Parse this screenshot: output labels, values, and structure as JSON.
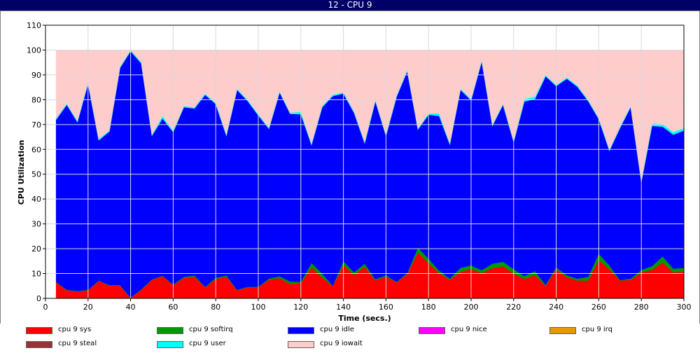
{
  "window": {
    "title": "12 - CPU 9"
  },
  "chart_data": {
    "type": "area",
    "stacked": true,
    "xlabel": "Time (secs.)",
    "ylabel": "CPU Utilization",
    "xlim": [
      0,
      300
    ],
    "ylim": [
      0,
      110
    ],
    "xticks": [
      0,
      20,
      40,
      60,
      80,
      100,
      120,
      140,
      160,
      180,
      200,
      220,
      240,
      260,
      280,
      300
    ],
    "yticks": [
      0,
      10,
      20,
      30,
      40,
      50,
      60,
      70,
      80,
      90,
      100,
      110
    ],
    "grid": true,
    "legend": "bottom",
    "x": [
      5,
      10,
      15,
      20,
      25,
      30,
      35,
      40,
      45,
      50,
      55,
      60,
      65,
      70,
      75,
      80,
      85,
      90,
      95,
      100,
      105,
      110,
      115,
      120,
      125,
      130,
      135,
      140,
      145,
      150,
      155,
      160,
      165,
      170,
      175,
      180,
      185,
      190,
      195,
      200,
      205,
      210,
      215,
      220,
      225,
      230,
      235,
      240,
      245,
      250,
      255,
      260,
      265,
      270,
      275,
      280,
      285,
      290,
      295,
      300
    ],
    "series": [
      {
        "name": "cpu 9 sys",
        "color": "#ff0000",
        "values": [
          6.5,
          3.3,
          2.8,
          3.3,
          7,
          5.2,
          5.2,
          0.2,
          3.5,
          7.5,
          9,
          5.4,
          8.2,
          8.8,
          4.5,
          7.8,
          8.8,
          3.3,
          4.5,
          4.5,
          7.5,
          8.2,
          5.8,
          6.2,
          12.5,
          8.5,
          5,
          13.5,
          9.5,
          12.8,
          7.3,
          8.8,
          6.5,
          9.8,
          18.5,
          14.2,
          10.2,
          7.5,
          10.8,
          11.8,
          10.2,
          12.2,
          13,
          10,
          7.8,
          9.5,
          5,
          11.8,
          8.5,
          7.2,
          7.2,
          15.5,
          11.8,
          7.2,
          7.5,
          10.5,
          11.5,
          14.5,
          10.5,
          10.8
        ]
      },
      {
        "name": "cpu 9 softirq",
        "color": "#009900",
        "values": [
          0.2,
          0.2,
          0.2,
          0.2,
          0.2,
          0.2,
          0.2,
          0.2,
          0.2,
          0.2,
          0.2,
          0.2,
          0.5,
          0.5,
          0.2,
          0.5,
          0.5,
          0.2,
          0.2,
          0.2,
          0.5,
          0.8,
          1,
          0.5,
          1.8,
          1.5,
          0.2,
          1.5,
          1,
          1.2,
          0.5,
          0.5,
          0.2,
          0.5,
          2,
          1.8,
          1,
          0.5,
          1.5,
          1.5,
          1.2,
          1.8,
          1.8,
          1.8,
          1.2,
          1.5,
          0.5,
          0.8,
          0.8,
          0.8,
          1.5,
          2.5,
          1.5,
          0.2,
          0.5,
          1,
          1.5,
          2.5,
          1.5,
          1.5
        ]
      },
      {
        "name": "cpu 9 idle",
        "color": "#0000ff",
        "values": [
          65.3,
          74.5,
          68,
          83,
          56.5,
          61.8,
          87.4,
          99.2,
          91,
          57.8,
          63.3,
          61.4,
          68.3,
          67.2,
          77.3,
          70,
          56.2,
          80.5,
          74.8,
          69,
          60.3,
          74,
          67.5,
          67.5,
          47.5,
          67,
          76.3,
          67.5,
          64.3,
          48.5,
          71.7,
          56.2,
          74.6,
          81.2,
          47.5,
          58,
          62.3,
          54,
          71.7,
          66.5,
          84.1,
          55.5,
          63.2,
          51.2,
          70.3,
          69.3,
          84,
          72.9,
          79.2,
          77.2,
          70.8,
          54.2,
          46.2,
          61.3,
          69.1,
          35.4,
          56.5,
          52.2,
          54,
          55.3
        ]
      },
      {
        "name": "cpu 9 nice",
        "color": "#ff00ff",
        "values": [
          0,
          0,
          0,
          0,
          0,
          0,
          0,
          0,
          0,
          0,
          0,
          0,
          0,
          0,
          0,
          0,
          0,
          0,
          0,
          0,
          0,
          0,
          0,
          0,
          0,
          0,
          0,
          0,
          0,
          0,
          0,
          0,
          0,
          0,
          0,
          0,
          0,
          0,
          0,
          0,
          0,
          0,
          0,
          0,
          0,
          0,
          0,
          0,
          0,
          0,
          0,
          0,
          0,
          0,
          0,
          0,
          0,
          0,
          0,
          0
        ]
      },
      {
        "name": "cpu 9 irq",
        "color": "#e69900",
        "values": [
          0,
          0,
          0,
          0,
          0,
          0,
          0,
          0,
          0,
          0,
          0,
          0,
          0,
          0,
          0,
          0,
          0,
          0,
          0,
          0,
          0,
          0,
          0,
          0,
          0,
          0,
          0,
          0,
          0,
          0,
          0,
          0,
          0,
          0,
          0,
          0,
          0,
          0,
          0,
          0,
          0,
          0,
          0,
          0,
          0,
          0,
          0,
          0,
          0,
          0,
          0,
          0,
          0,
          0,
          0,
          0,
          0,
          0,
          0,
          0
        ]
      },
      {
        "name": "cpu 9 steal",
        "color": "#993333",
        "values": [
          0,
          0,
          0,
          0,
          0,
          0,
          0,
          0,
          0,
          0,
          0,
          0,
          0,
          0,
          0,
          0,
          0,
          0,
          0,
          0,
          0,
          0,
          0,
          0,
          0,
          0,
          0,
          0,
          0,
          0,
          0,
          0,
          0,
          0,
          0,
          0,
          0,
          0,
          0,
          0,
          0,
          0,
          0,
          0,
          0,
          0,
          0,
          0,
          0,
          0,
          0,
          0,
          0,
          0,
          0,
          0,
          0,
          0,
          0,
          0
        ]
      },
      {
        "name": "cpu 9 user",
        "color": "#00ffff",
        "values": [
          0.5,
          0.5,
          0.5,
          0.5,
          0.5,
          0.5,
          0.5,
          0.4,
          0.5,
          0.5,
          1,
          0.5,
          0.5,
          0.5,
          0.5,
          0.5,
          0.5,
          0.5,
          0.5,
          0.5,
          0.5,
          0.5,
          0.5,
          1,
          0.5,
          0.5,
          0.5,
          0.5,
          0.5,
          0.5,
          0.5,
          0.5,
          0.5,
          0.5,
          0.5,
          0.5,
          1,
          0.5,
          0.5,
          0.5,
          0.5,
          0.5,
          0.5,
          0.5,
          1,
          1,
          0.5,
          0.5,
          0.5,
          0.5,
          0.5,
          0.5,
          0.5,
          0.5,
          0.5,
          0.5,
          1,
          1,
          1,
          1
        ]
      },
      {
        "name": "cpu 9 iowait",
        "color": "#ffcccc",
        "values": [
          27.5,
          21.5,
          28.5,
          13,
          35.8,
          32.3,
          6.7,
          0,
          4.8,
          34,
          26.5,
          32.5,
          22.5,
          23,
          17.5,
          21.2,
          34,
          15.5,
          20,
          25.8,
          31.2,
          16.5,
          25.2,
          24.8,
          37.7,
          22.5,
          18,
          17,
          24.7,
          37,
          20,
          34,
          18.2,
          8,
          31.5,
          25.5,
          25.5,
          37.5,
          15.5,
          19.7,
          4,
          30,
          21.5,
          36.5,
          19.7,
          18.7,
          10,
          14,
          11,
          14.3,
          20,
          27.3,
          40,
          30.8,
          22.4,
          52.6,
          29.5,
          29.8,
          33,
          31.4
        ]
      }
    ]
  }
}
